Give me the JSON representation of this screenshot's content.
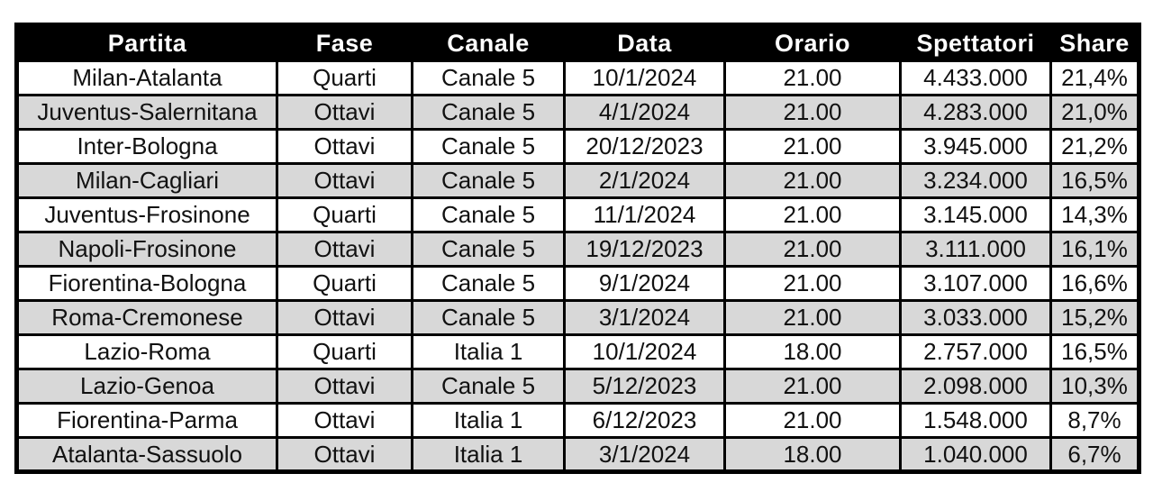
{
  "colors": {
    "header_bg": "#000000",
    "header_text": "#ffffff",
    "row_bg": "#ffffff",
    "row_alt_bg": "#d8d8d8",
    "border_color": "#000000",
    "cell_text": "#111111"
  },
  "chart_data": {
    "type": "table",
    "columns": [
      "Partita",
      "Fase",
      "Canale",
      "Data",
      "Orario",
      "Spettatori",
      "Share"
    ],
    "rows": [
      [
        "Milan-Atalanta",
        "Quarti",
        "Canale 5",
        "10/1/2024",
        "21.00",
        "4.433.000",
        "21,4%"
      ],
      [
        "Juventus-Salernitana",
        "Ottavi",
        "Canale 5",
        "4/1/2024",
        "21.00",
        "4.283.000",
        "21,0%"
      ],
      [
        "Inter-Bologna",
        "Ottavi",
        "Canale 5",
        "20/12/2023",
        "21.00",
        "3.945.000",
        "21,2%"
      ],
      [
        "Milan-Cagliari",
        "Ottavi",
        "Canale 5",
        "2/1/2024",
        "21.00",
        "3.234.000",
        "16,5%"
      ],
      [
        "Juventus-Frosinone",
        "Quarti",
        "Canale 5",
        "11/1/2024",
        "21.00",
        "3.145.000",
        "14,3%"
      ],
      [
        "Napoli-Frosinone",
        "Ottavi",
        "Canale 5",
        "19/12/2023",
        "21.00",
        "3.111.000",
        "16,1%"
      ],
      [
        "Fiorentina-Bologna",
        "Quarti",
        "Canale 5",
        "9/1/2024",
        "21.00",
        "3.107.000",
        "16,6%"
      ],
      [
        "Roma-Cremonese",
        "Ottavi",
        "Canale 5",
        "3/1/2024",
        "21.00",
        "3.033.000",
        "15,2%"
      ],
      [
        "Lazio-Roma",
        "Quarti",
        "Italia 1",
        "10/1/2024",
        "18.00",
        "2.757.000",
        "16,5%"
      ],
      [
        "Lazio-Genoa",
        "Ottavi",
        "Canale 5",
        "5/12/2023",
        "21.00",
        "2.098.000",
        "10,3%"
      ],
      [
        "Fiorentina-Parma",
        "Ottavi",
        "Italia 1",
        "6/12/2023",
        "21.00",
        "1.548.000",
        "8,7%"
      ],
      [
        "Atalanta-Sassuolo",
        "Ottavi",
        "Italia 1",
        "3/1/2024",
        "18.00",
        "1.040.000",
        "6,7%"
      ]
    ]
  }
}
